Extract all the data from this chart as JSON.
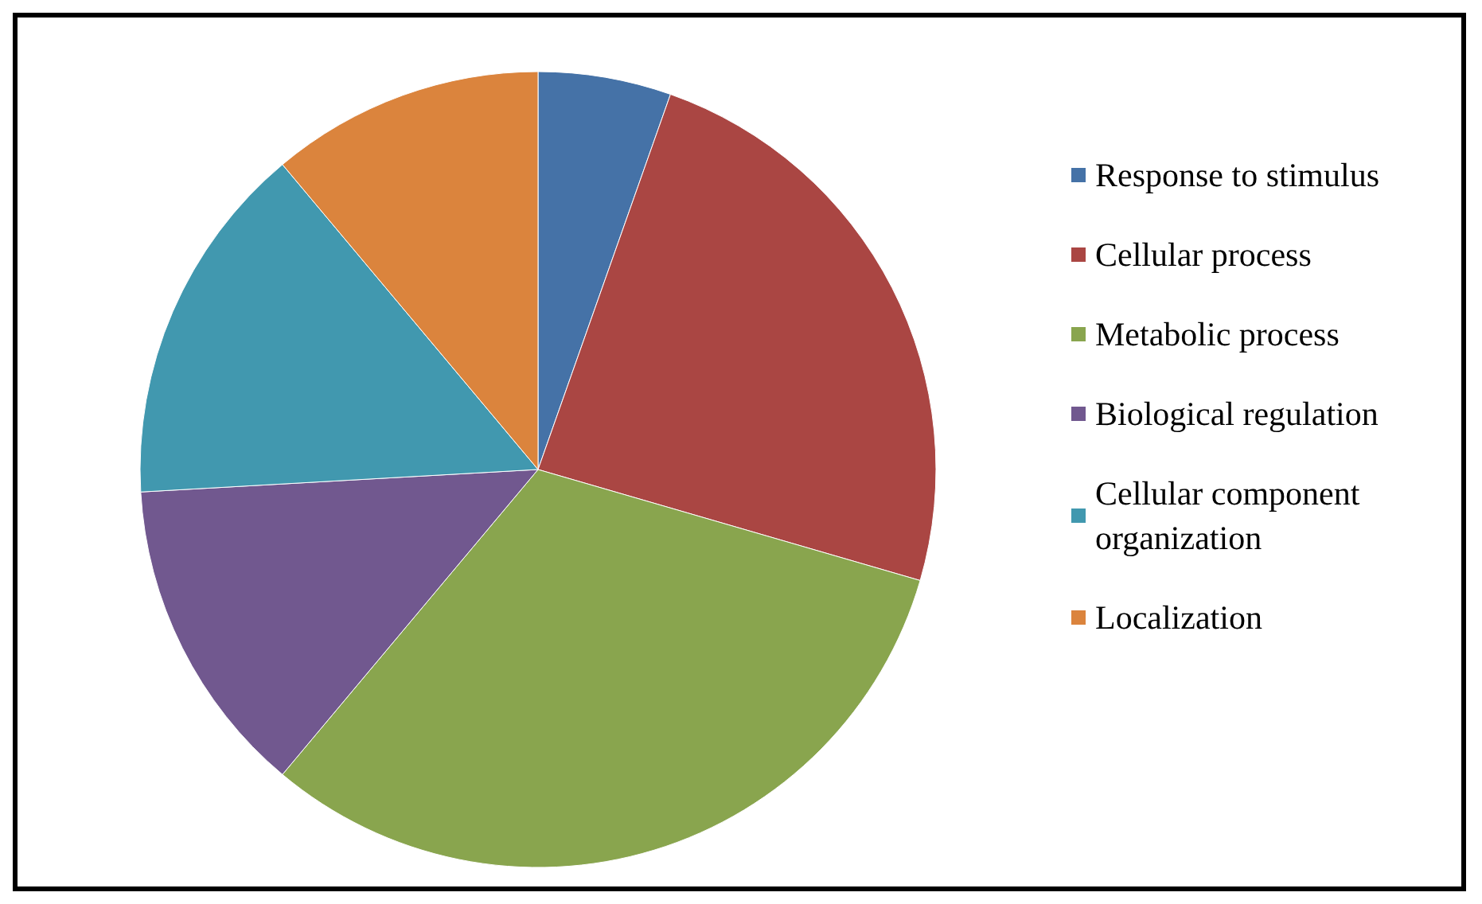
{
  "chart_data": {
    "type": "pie",
    "categories": [
      "Response to stimulus",
      "Cellular process",
      "Metabolic process",
      "Biological regulation",
      "Cellular component organization",
      "Localization"
    ],
    "values": [
      5.4,
      24.1,
      31.6,
      13.0,
      14.8,
      11.1
    ],
    "colors": [
      "#4572a7",
      "#aa4643",
      "#89a54e",
      "#71588f",
      "#4198af",
      "#db843d"
    ],
    "legend": "right"
  }
}
